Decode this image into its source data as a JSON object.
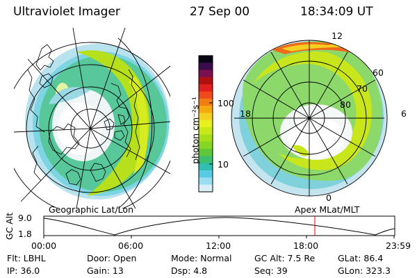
{
  "header": {
    "instrument": "Ultraviolet Imager",
    "date": "27 Sep 00",
    "time": "18:34:09 UT"
  },
  "colorbar": {
    "unit_label": "photon cm⁻²s⁻¹",
    "ticks": [
      "100",
      "10"
    ],
    "colors": [
      "#0a0618",
      "#3a0c4a",
      "#7a1050",
      "#b01010",
      "#e02020",
      "#f04a1a",
      "#f07d14",
      "#f5aa10",
      "#f5d020",
      "#e8f020",
      "#c8e818",
      "#a6de1c",
      "#86d624",
      "#5ec838",
      "#3cbf6e",
      "#30bfae",
      "#58cce6",
      "#9adcf0",
      "#d8eff8"
    ]
  },
  "left_panel": {
    "label": "Geographic Lat/Lon"
  },
  "right_panel": {
    "label": "Apex  MLat/MLT",
    "lat_labels": [
      "60",
      "70",
      "80"
    ],
    "mlt_labels": {
      "top": "12",
      "bottom": "0",
      "left": "18",
      "right": "6"
    }
  },
  "timeline": {
    "axis_label": "GC Alt",
    "y_ticks": [
      "9.0",
      "1.8"
    ],
    "x_ticks": [
      "00:00",
      "06:00",
      "12:00",
      "18:00",
      "23:59"
    ],
    "marker_time": "18:34",
    "marker_color": "#e00000"
  },
  "footer": {
    "filter": "Flt: LBHL",
    "door": "Door: Open",
    "mode": "Mode: Normal",
    "gc_alt": "GC Alt: 7.5 Re",
    "glat": "GLat:  86.4",
    "ip": "IP: 36.0",
    "gain": "Gain: 13",
    "dsp": "Dsp:    4.8",
    "seq": "Seq: 39",
    "glon": "GLon: 323.3"
  }
}
